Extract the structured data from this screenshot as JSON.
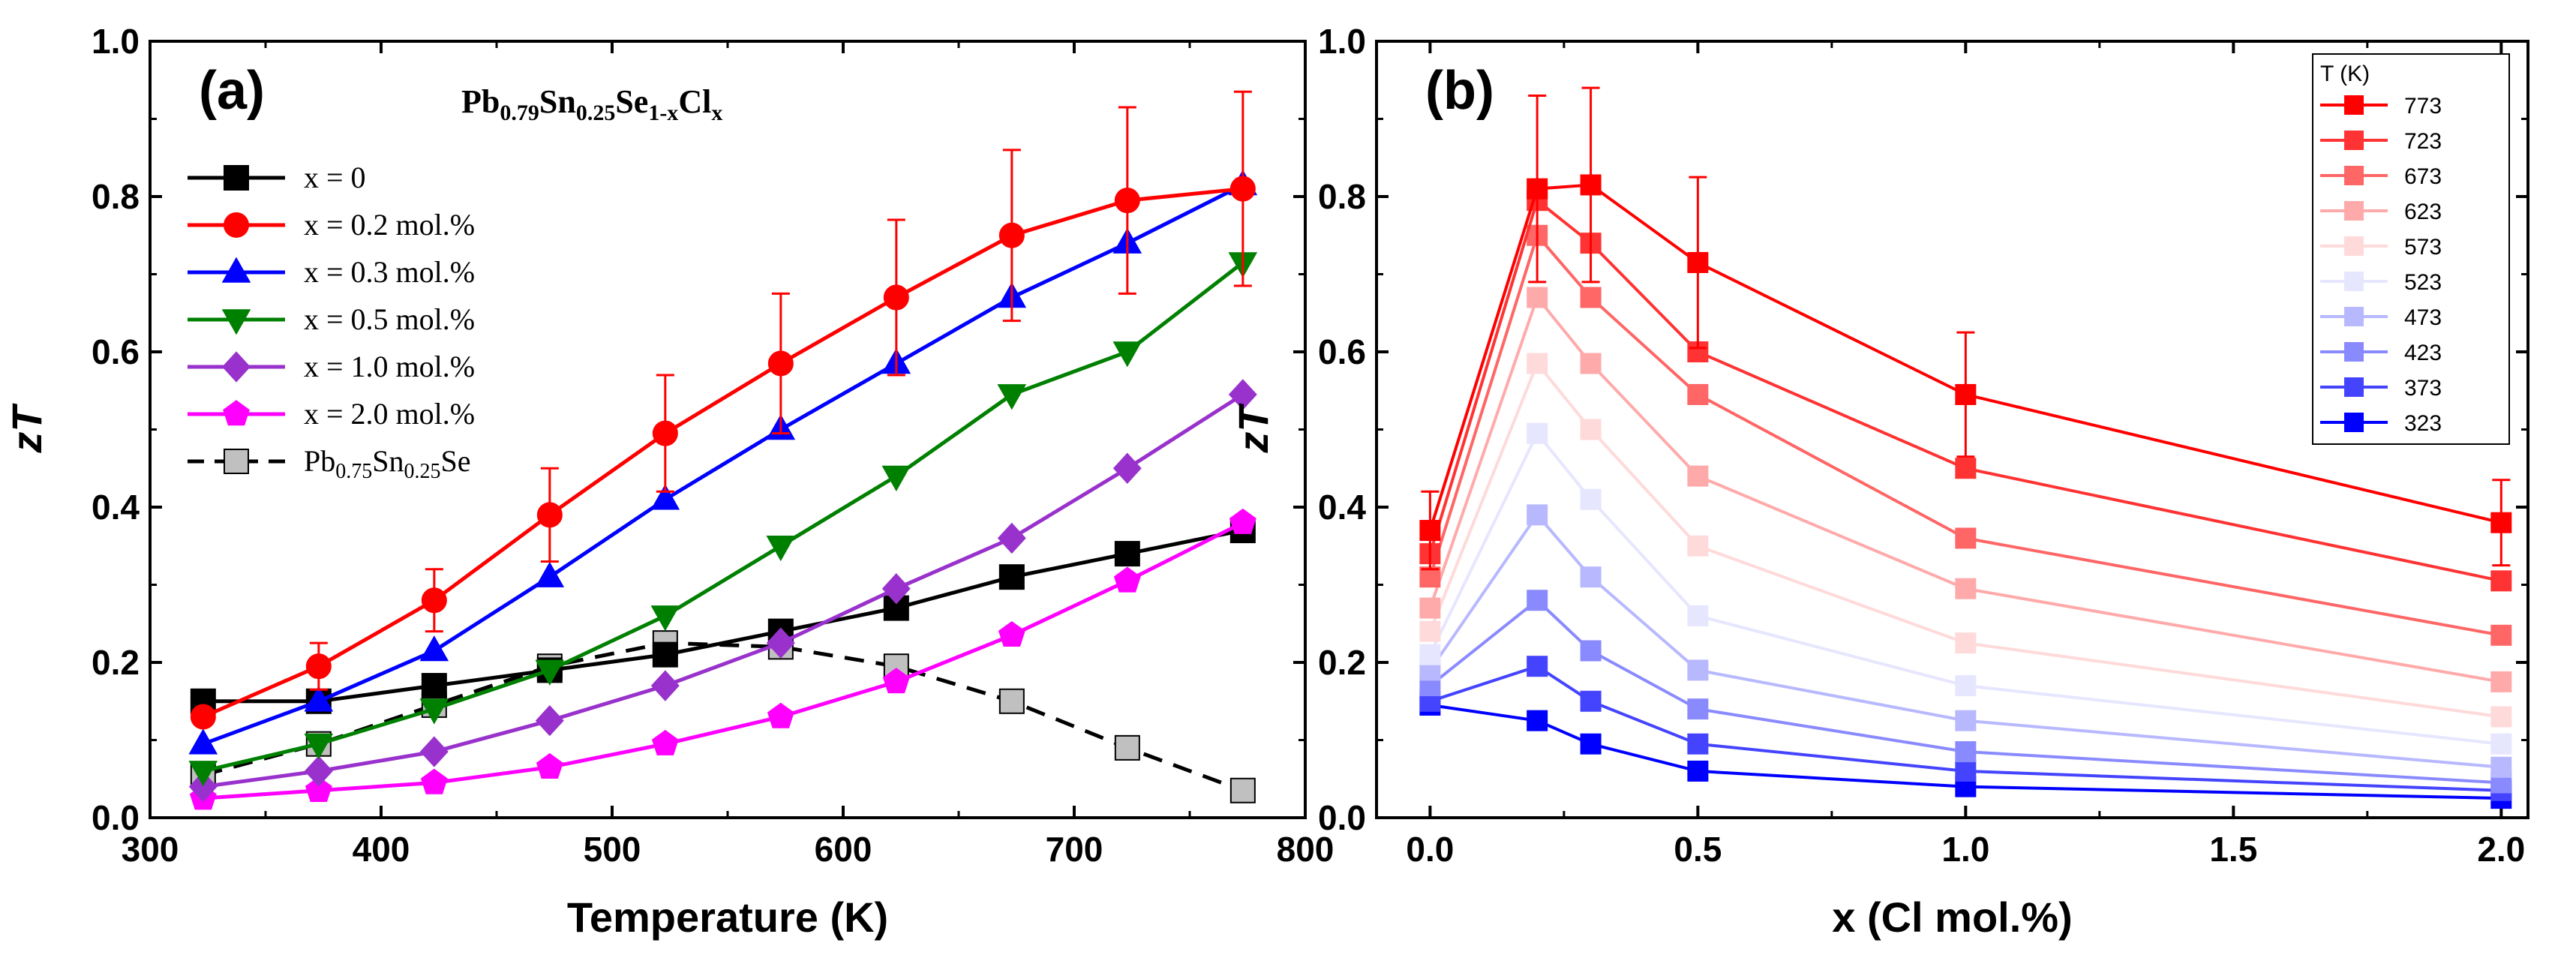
{
  "chart_data": [
    {
      "type": "line",
      "panel_label": "(a)",
      "formula": {
        "base": "Pb",
        "s1": "0.79",
        "m1": "Sn",
        "s2": "0.25",
        "m2": "Se",
        "s3": "1-x",
        "m3": "Cl",
        "s4": "x"
      },
      "xlabel": "Temperature (K)",
      "ylabel": "zT",
      "xlim": [
        300,
        800
      ],
      "ylim": [
        0.0,
        1.0
      ],
      "xticks": [
        "300",
        "400",
        "500",
        "600",
        "700",
        "800"
      ],
      "yticks": [
        "0.0",
        "0.2",
        "0.4",
        "0.6",
        "0.8",
        "1.0"
      ],
      "x": [
        323,
        373,
        423,
        473,
        523,
        573,
        623,
        673,
        723,
        773
      ],
      "series": [
        {
          "name": "x = 0",
          "color": "#000000",
          "marker": "square",
          "values": [
            0.15,
            0.15,
            0.17,
            0.19,
            0.21,
            0.24,
            0.27,
            0.31,
            0.34,
            0.37
          ]
        },
        {
          "name": "x = 0.2 mol.%",
          "color": "#ff0000",
          "marker": "circle",
          "values": [
            0.13,
            0.195,
            0.28,
            0.39,
            0.495,
            0.585,
            0.67,
            0.75,
            0.795,
            0.81
          ],
          "errors": [
            0,
            0.03,
            0.04,
            0.06,
            0.075,
            0.09,
            0.1,
            0.11,
            0.12,
            0.125
          ]
        },
        {
          "name": "x = 0.3 mol.%",
          "color": "#0000ff",
          "marker": "triangle-up",
          "values": [
            0.095,
            0.15,
            0.215,
            0.31,
            0.41,
            0.5,
            0.585,
            0.67,
            0.74,
            0.815
          ]
        },
        {
          "name": "x = 0.5 mol.%",
          "color": "#008000",
          "marker": "triangle-down",
          "values": [
            0.06,
            0.095,
            0.14,
            0.19,
            0.26,
            0.35,
            0.44,
            0.545,
            0.6,
            0.715
          ]
        },
        {
          "name": "x = 1.0 mol.%",
          "color": "#9932cc",
          "marker": "diamond",
          "values": [
            0.04,
            0.06,
            0.085,
            0.125,
            0.17,
            0.225,
            0.295,
            0.36,
            0.45,
            0.545
          ]
        },
        {
          "name": "x = 2.0 mol.%",
          "color": "#ff00ff",
          "marker": "pentagon",
          "values": [
            0.025,
            0.035,
            0.045,
            0.065,
            0.095,
            0.13,
            0.175,
            0.235,
            0.305,
            0.38
          ]
        },
        {
          "name": "Pb0.75Sn0.25Se",
          "name_parts": {
            "a": "Pb",
            "b": "0.75",
            "c": "Sn",
            "d": "0.25",
            "e": "Se"
          },
          "color": "#000000",
          "fill": "#c0c0c0",
          "marker": "square",
          "dashed": true,
          "values": [
            0.055,
            0.095,
            0.145,
            0.195,
            0.225,
            0.22,
            0.195,
            0.15,
            0.09,
            0.035
          ]
        }
      ]
    },
    {
      "type": "line",
      "panel_label": "(b)",
      "xlabel": "x (Cl mol.%)",
      "ylabel": "zT",
      "xlim": [
        -0.1,
        2.05
      ],
      "ylim": [
        0.0,
        1.0
      ],
      "xticks": [
        "0.0",
        "0.5",
        "1.0",
        "1.5",
        "2.0"
      ],
      "yticks": [
        "0.0",
        "0.2",
        "0.4",
        "0.6",
        "0.8",
        "1.0"
      ],
      "legend_title": "T (K)",
      "x": [
        0,
        0.2,
        0.3,
        0.5,
        1.0,
        2.0
      ],
      "series": [
        {
          "name": "773",
          "color": "#ff0000",
          "values": [
            0.37,
            0.81,
            0.815,
            0.715,
            0.545,
            0.38
          ],
          "errors": [
            0.05,
            0.12,
            0.125,
            0.11,
            0.08,
            0.055
          ]
        },
        {
          "name": "723",
          "color": "#ff3333",
          "values": [
            0.34,
            0.795,
            0.74,
            0.6,
            0.45,
            0.305
          ]
        },
        {
          "name": "673",
          "color": "#ff6666",
          "values": [
            0.31,
            0.75,
            0.67,
            0.545,
            0.36,
            0.235
          ]
        },
        {
          "name": "623",
          "color": "#ffaaaa",
          "values": [
            0.27,
            0.67,
            0.585,
            0.44,
            0.295,
            0.175
          ]
        },
        {
          "name": "573",
          "color": "#ffdada",
          "values": [
            0.24,
            0.585,
            0.5,
            0.35,
            0.225,
            0.13
          ]
        },
        {
          "name": "523",
          "color": "#e6e6ff",
          "values": [
            0.21,
            0.495,
            0.41,
            0.26,
            0.17,
            0.095
          ]
        },
        {
          "name": "473",
          "color": "#b8b8ff",
          "values": [
            0.19,
            0.39,
            0.31,
            0.19,
            0.125,
            0.065
          ]
        },
        {
          "name": "423",
          "color": "#8a8aff",
          "values": [
            0.17,
            0.28,
            0.215,
            0.14,
            0.085,
            0.045
          ]
        },
        {
          "name": "373",
          "color": "#4444ff",
          "values": [
            0.15,
            0.195,
            0.15,
            0.095,
            0.06,
            0.035
          ]
        },
        {
          "name": "323",
          "color": "#0000ff",
          "values": [
            0.145,
            0.125,
            0.095,
            0.06,
            0.04,
            0.025
          ]
        }
      ]
    }
  ]
}
